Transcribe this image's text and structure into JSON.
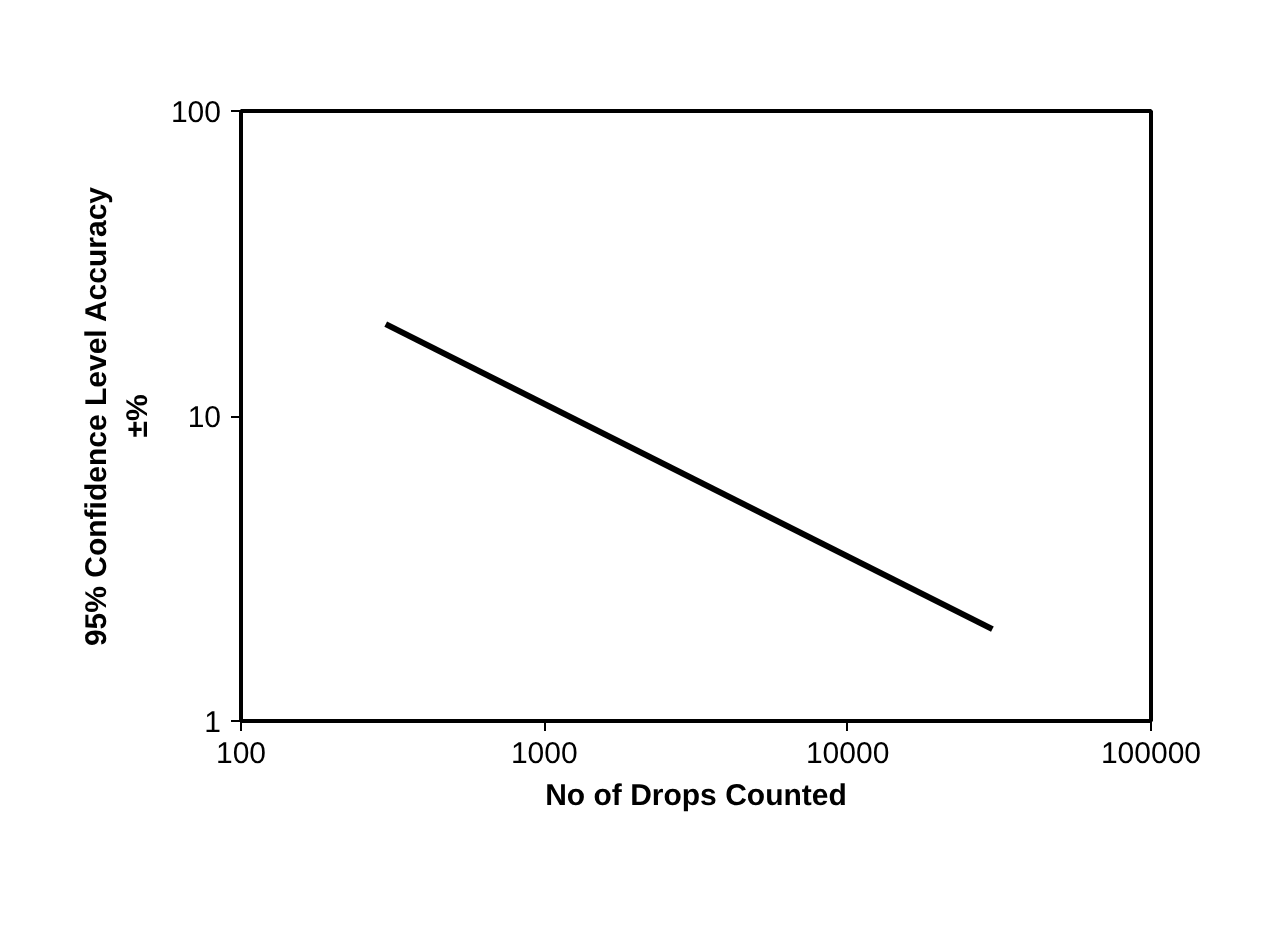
{
  "chart_data": {
    "type": "line",
    "xlabel": "No of Drops Counted",
    "ylabel": "95% Confidence Level Accuracy\n±%",
    "log": "xy",
    "grid": false,
    "marker": "none",
    "line_style": "solid",
    "x": [
      300,
      30000
    ],
    "series": [
      {
        "color": "#000000",
        "values": [
          20,
          2
        ]
      }
    ],
    "xlim": [
      100,
      100000
    ],
    "xticks": [
      100,
      1000,
      10000,
      100000
    ],
    "ylim": [
      1,
      100
    ],
    "yticks": [
      1,
      10,
      100
    ]
  }
}
